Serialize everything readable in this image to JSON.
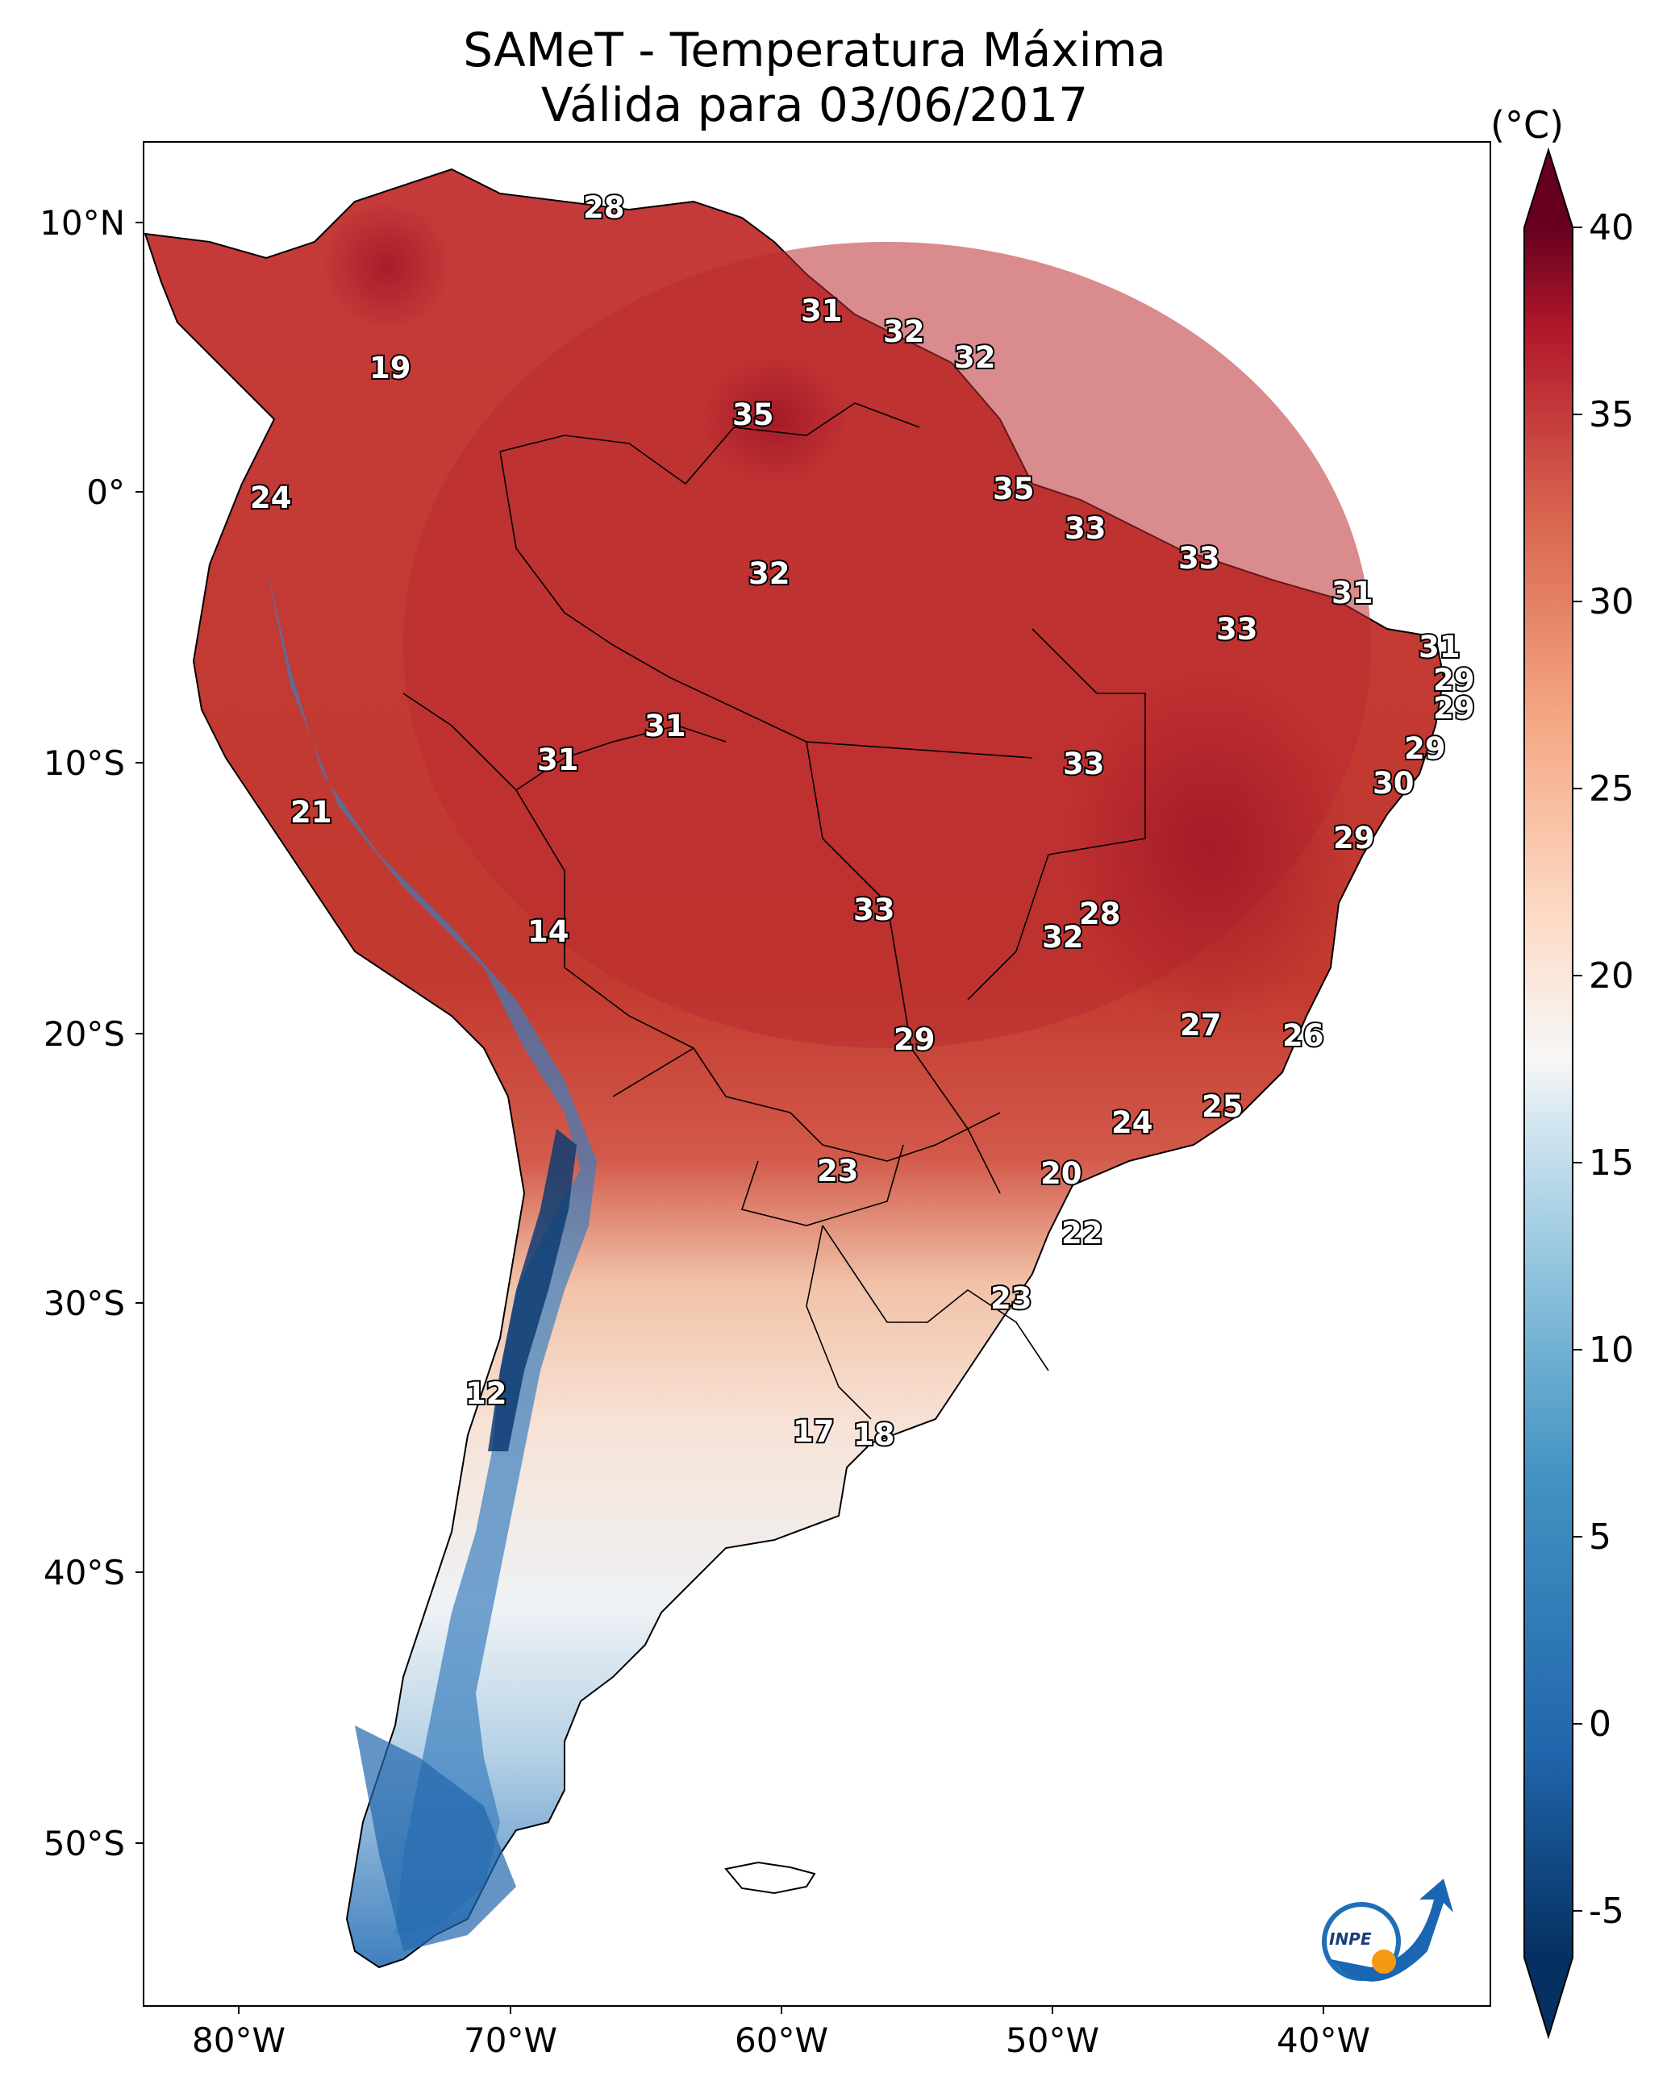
{
  "title_line1": "SAMeT - Temperatura Máxima",
  "title_line2": "Válida para 03/06/2017",
  "colorbar": {
    "unit": "(°C)",
    "ticks": [
      "40",
      "35",
      "30",
      "25",
      "20",
      "15",
      "10",
      "5",
      "0",
      "-5"
    ]
  },
  "axes": {
    "lon_labels": [
      "80°W",
      "70°W",
      "60°W",
      "50°W",
      "40°W"
    ],
    "lat_labels": [
      "10°N",
      "0°",
      "10°S",
      "20°S",
      "30°S",
      "40°S",
      "50°S"
    ]
  },
  "logo_text": "INPE",
  "station_values": [
    {
      "id": "t28a",
      "text": "28"
    },
    {
      "id": "t19",
      "text": "19"
    },
    {
      "id": "t31a",
      "text": "31"
    },
    {
      "id": "t32a",
      "text": "32"
    },
    {
      "id": "t32b",
      "text": "32"
    },
    {
      "id": "t35a",
      "text": "35"
    },
    {
      "id": "t35b",
      "text": "35"
    },
    {
      "id": "t24a",
      "text": "24"
    },
    {
      "id": "t33a",
      "text": "33"
    },
    {
      "id": "t32c",
      "text": "32"
    },
    {
      "id": "t33b",
      "text": "33"
    },
    {
      "id": "t31b",
      "text": "31"
    },
    {
      "id": "t33c",
      "text": "33"
    },
    {
      "id": "t31c",
      "text": "31"
    },
    {
      "id": "t29a",
      "text": "29"
    },
    {
      "id": "t29b",
      "text": "29"
    },
    {
      "id": "t31d",
      "text": "31"
    },
    {
      "id": "t31e",
      "text": "31"
    },
    {
      "id": "t29c",
      "text": "29"
    },
    {
      "id": "t33d",
      "text": "33"
    },
    {
      "id": "t30",
      "text": "30"
    },
    {
      "id": "t21",
      "text": "21"
    },
    {
      "id": "t29d",
      "text": "29"
    },
    {
      "id": "t14",
      "text": "14"
    },
    {
      "id": "t33e",
      "text": "33"
    },
    {
      "id": "t28b",
      "text": "28"
    },
    {
      "id": "t32d",
      "text": "32"
    },
    {
      "id": "t27",
      "text": "27"
    },
    {
      "id": "t26",
      "text": "26"
    },
    {
      "id": "t29e",
      "text": "29"
    },
    {
      "id": "t24b",
      "text": "24"
    },
    {
      "id": "t25",
      "text": "25"
    },
    {
      "id": "t23a",
      "text": "23"
    },
    {
      "id": "t20",
      "text": "20"
    },
    {
      "id": "t22",
      "text": "22"
    },
    {
      "id": "t23b",
      "text": "23"
    },
    {
      "id": "t12",
      "text": "12"
    },
    {
      "id": "t17",
      "text": "17"
    },
    {
      "id": "t18",
      "text": "18"
    }
  ],
  "colors": {
    "hot": "#8b0a1f",
    "warm": "#d0504a",
    "mild": "#f4c1a6",
    "neutral": "#f2f2f2",
    "cool": "#92c5de",
    "cold": "#2166ac",
    "coldest": "#0a3466"
  }
}
